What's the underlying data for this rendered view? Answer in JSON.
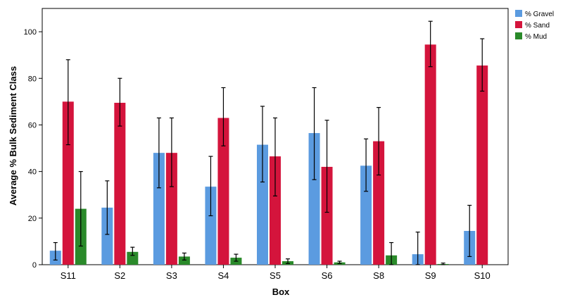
{
  "chart_data": {
    "type": "bar",
    "title": "",
    "xlabel": "Box",
    "ylabel": "Average % Bulk Sediment Class",
    "ylim": [
      0,
      110
    ],
    "yticks": [
      0,
      20,
      40,
      60,
      80,
      100
    ],
    "grid": false,
    "legend_position": "top-right",
    "error_bars": true,
    "categories": [
      "S11",
      "S2",
      "S3",
      "S4",
      "S5",
      "S6",
      "S8",
      "S9",
      "S10"
    ],
    "series": [
      {
        "name": "% Gravel",
        "color": "#5b9be0",
        "values": [
          6,
          24.5,
          48,
          33.5,
          51.5,
          56.5,
          42.5,
          4.5,
          14.5
        ],
        "error_low": [
          2,
          13,
          33,
          21,
          35.5,
          36.5,
          31.5,
          0,
          3.5
        ],
        "error_high": [
          9.5,
          36,
          63,
          46.5,
          68,
          76,
          54,
          14,
          25.5
        ]
      },
      {
        "name": "% Sand",
        "color": "#d4143c",
        "values": [
          70,
          69.5,
          48,
          63,
          46.5,
          42,
          53,
          94.5,
          85.5
        ],
        "error_low": [
          51.5,
          59.5,
          33.5,
          51,
          29.5,
          22.5,
          38.5,
          85,
          74.5
        ],
        "error_high": [
          88,
          80,
          63,
          76,
          63,
          62,
          67.5,
          104.5,
          97
        ]
      },
      {
        "name": "% Mud",
        "color": "#2a8a2a",
        "values": [
          24,
          5.5,
          3.5,
          3,
          1.5,
          1,
          4,
          0.3,
          0
        ],
        "error_low": [
          8,
          4,
          2,
          1.5,
          0.5,
          0.5,
          0,
          0,
          0
        ],
        "error_high": [
          40,
          7.5,
          5,
          4.5,
          2.5,
          1.5,
          9.5,
          0.7,
          0
        ]
      }
    ]
  }
}
